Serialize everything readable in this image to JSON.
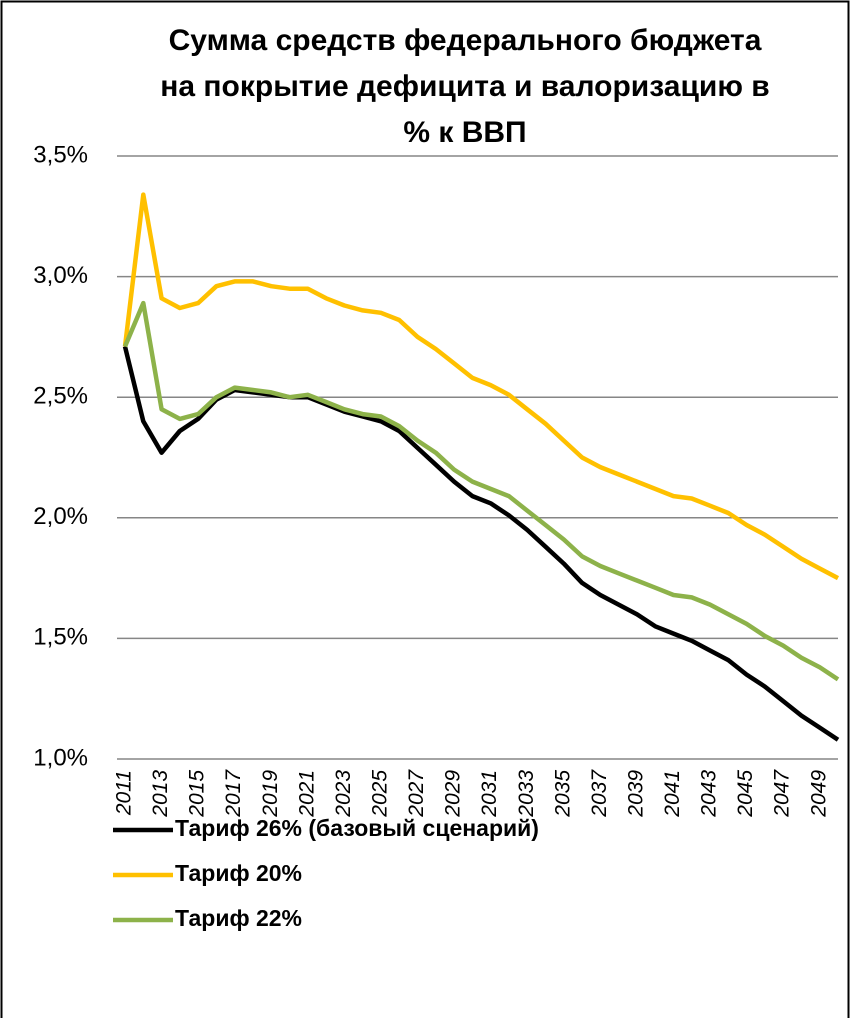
{
  "chart_data": {
    "type": "line",
    "title": [
      "Сумма средств федерального бюджета",
      "на покрытие дефицита и валоризацию в",
      "% к ВВП"
    ],
    "categories": [
      "2011",
      null,
      "2013",
      null,
      "2015",
      null,
      "2017",
      null,
      "2019",
      null,
      "2021",
      null,
      "2023",
      null,
      "2025",
      null,
      "2027",
      null,
      "2029",
      null,
      "2031",
      null,
      "2033",
      null,
      "2035",
      null,
      "2037",
      null,
      "2039",
      null,
      "2041",
      null,
      "2043",
      null,
      "2045",
      null,
      "2047",
      null,
      "2049",
      null
    ],
    "series": [
      {
        "name": "Тариф 26% (базовый сценарий)",
        "color": "#000000",
        "values": [
          2.71,
          2.4,
          2.27,
          2.36,
          2.41,
          2.49,
          2.53,
          2.52,
          2.51,
          2.5,
          2.5,
          2.47,
          2.44,
          2.42,
          2.4,
          2.36,
          2.29,
          2.22,
          2.15,
          2.09,
          2.06,
          2.01,
          1.95,
          1.88,
          1.81,
          1.73,
          1.68,
          1.64,
          1.6,
          1.55,
          1.52,
          1.49,
          1.45,
          1.41,
          1.35,
          1.3,
          1.24,
          1.18,
          1.13,
          1.08
        ]
      },
      {
        "name": "Тариф 20%",
        "color": "#ffc000",
        "values": [
          2.71,
          3.34,
          2.91,
          2.87,
          2.89,
          2.96,
          2.98,
          2.98,
          2.96,
          2.95,
          2.95,
          2.91,
          2.88,
          2.86,
          2.85,
          2.82,
          2.75,
          2.7,
          2.64,
          2.58,
          2.55,
          2.51,
          2.45,
          2.39,
          2.32,
          2.25,
          2.21,
          2.18,
          2.15,
          2.12,
          2.09,
          2.08,
          2.05,
          2.02,
          1.97,
          1.93,
          1.88,
          1.83,
          1.79,
          1.75
        ]
      },
      {
        "name": "Тариф 22%",
        "color": "#8db24a",
        "values": [
          2.71,
          2.89,
          2.45,
          2.41,
          2.43,
          2.5,
          2.54,
          2.53,
          2.52,
          2.5,
          2.51,
          2.48,
          2.45,
          2.43,
          2.42,
          2.38,
          2.32,
          2.27,
          2.2,
          2.15,
          2.12,
          2.09,
          2.03,
          1.97,
          1.91,
          1.84,
          1.8,
          1.77,
          1.74,
          1.71,
          1.68,
          1.67,
          1.64,
          1.6,
          1.56,
          1.51,
          1.47,
          1.42,
          1.38,
          1.33
        ]
      }
    ],
    "ylim": [
      1.0,
      3.5
    ],
    "yticks": [
      {
        "value": 1.0,
        "label": "1,0%"
      },
      {
        "value": 1.5,
        "label": "1,5%"
      },
      {
        "value": 2.0,
        "label": "2,0%"
      },
      {
        "value": 2.5,
        "label": "2,5%"
      },
      {
        "value": 3.0,
        "label": "3,0%"
      },
      {
        "value": 3.5,
        "label": "3,5%"
      }
    ],
    "grid": true,
    "legend": "bottom"
  }
}
